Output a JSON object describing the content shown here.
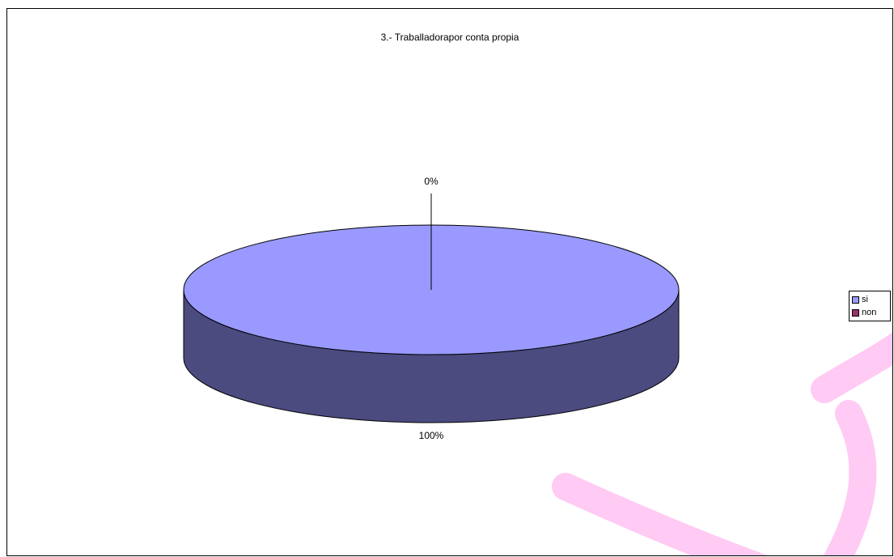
{
  "chart_data": {
    "type": "pie",
    "title": "3.- Traballadorapor conta propia",
    "categories": [
      "si",
      "non"
    ],
    "values": [
      100,
      0
    ],
    "data_labels": [
      "100%",
      "0%"
    ],
    "colors": {
      "si_top": "#9999ff",
      "si_side": "#4b4b80",
      "non": "#993366",
      "watermark": "#ff66dd"
    },
    "three_d": true,
    "legend_position": "right"
  }
}
